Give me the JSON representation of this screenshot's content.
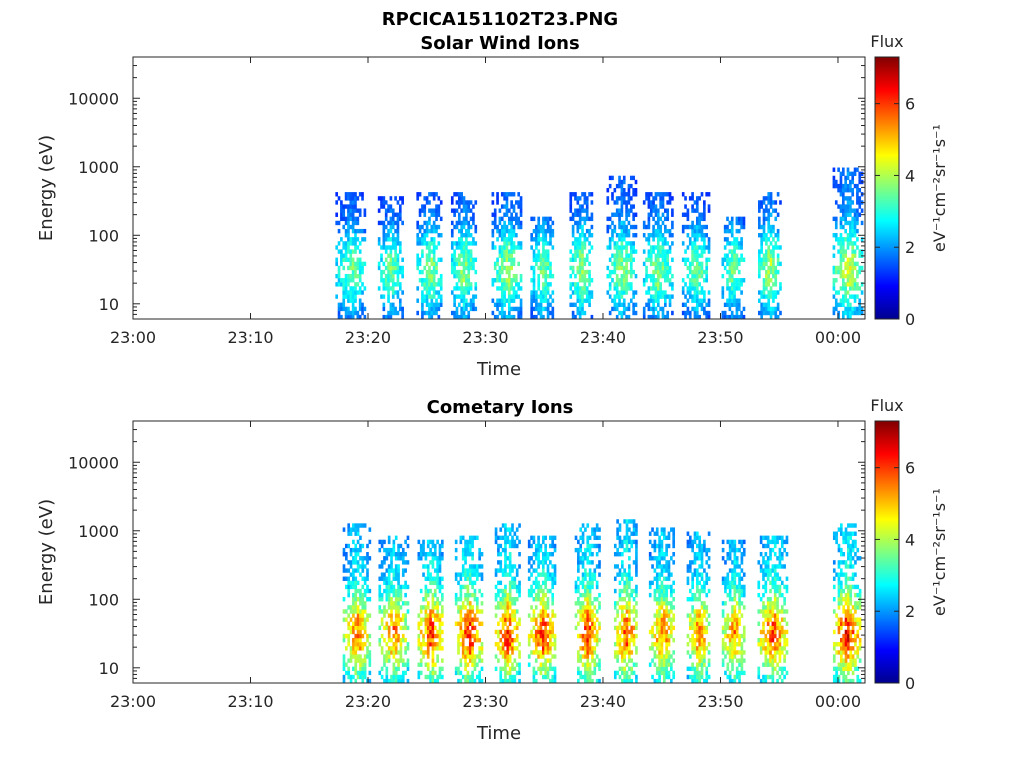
{
  "figure": {
    "title": "RPCICA151102T23.PNG"
  },
  "chart_data": [
    {
      "type": "heatmap",
      "title": "Solar Wind Ions",
      "xlabel": "Time",
      "ylabel": "Energy (eV)",
      "x_tick_labels": [
        "23:00",
        "23:10",
        "23:20",
        "23:30",
        "23:40",
        "23:50",
        "00:00"
      ],
      "x_ticks_min": [
        0,
        10,
        20,
        30,
        40,
        50,
        60
      ],
      "xlim_min": [
        0,
        62.3
      ],
      "y_scale": "log",
      "y_tick_labels": [
        "10",
        "100",
        "1000",
        "10000"
      ],
      "y_ticks": [
        10,
        100,
        1000,
        10000
      ],
      "ylim": [
        6,
        40000
      ],
      "colorbar": {
        "label": "Flux",
        "units": "eV⁻¹cm⁻²sr⁻¹s⁻¹",
        "range": [
          0,
          7.3
        ],
        "tick_labels": [
          "0",
          "2",
          "4",
          "6"
        ],
        "ticks": [
          0,
          2,
          4,
          6
        ]
      },
      "bursts": [
        {
          "t_min": 18.5,
          "e_max": 450,
          "peak": 3.6
        },
        {
          "t_min": 21.9,
          "e_max": 350,
          "peak": 3.6
        },
        {
          "t_min": 25.2,
          "e_max": 450,
          "peak": 3.8
        },
        {
          "t_min": 28.1,
          "e_max": 450,
          "peak": 3.8
        },
        {
          "t_min": 31.8,
          "e_max": 450,
          "peak": 3.9
        },
        {
          "t_min": 34.8,
          "e_max": 200,
          "peak": 3.7
        },
        {
          "t_min": 38.1,
          "e_max": 450,
          "peak": 3.9
        },
        {
          "t_min": 41.5,
          "e_max": 700,
          "peak": 3.8
        },
        {
          "t_min": 44.6,
          "e_max": 450,
          "peak": 3.8
        },
        {
          "t_min": 47.9,
          "e_max": 450,
          "peak": 3.6
        },
        {
          "t_min": 51.0,
          "e_max": 200,
          "peak": 3.6
        },
        {
          "t_min": 54.1,
          "e_max": 450,
          "peak": 4.1
        },
        {
          "t_min": 60.8,
          "e_max": 1000,
          "peak": 4.3
        }
      ]
    },
    {
      "type": "heatmap",
      "title": "Cometary Ions",
      "xlabel": "Time",
      "ylabel": "Energy (eV)",
      "x_tick_labels": [
        "23:00",
        "23:10",
        "23:20",
        "23:30",
        "23:40",
        "23:50",
        "00:00"
      ],
      "x_ticks_min": [
        0,
        10,
        20,
        30,
        40,
        50,
        60
      ],
      "xlim_min": [
        0,
        62.3
      ],
      "y_scale": "log",
      "y_tick_labels": [
        "10",
        "100",
        "1000",
        "10000"
      ],
      "y_ticks": [
        10,
        100,
        1000,
        10000
      ],
      "ylim": [
        6,
        40000
      ],
      "colorbar": {
        "label": "Flux",
        "units": "eV⁻¹cm⁻²sr⁻¹s⁻¹",
        "range": [
          0,
          7.3
        ],
        "tick_labels": [
          "0",
          "2",
          "4",
          "6"
        ],
        "ticks": [
          0,
          2,
          4,
          6
        ]
      },
      "bursts": [
        {
          "t_min": 19.0,
          "e_max": 1200,
          "peak": 5.6
        },
        {
          "t_min": 22.1,
          "e_max": 900,
          "peak": 5.5
        },
        {
          "t_min": 25.3,
          "e_max": 700,
          "peak": 6.0
        },
        {
          "t_min": 28.5,
          "e_max": 900,
          "peak": 6.2
        },
        {
          "t_min": 31.8,
          "e_max": 1200,
          "peak": 6.1
        },
        {
          "t_min": 34.8,
          "e_max": 900,
          "peak": 6.0
        },
        {
          "t_min": 38.6,
          "e_max": 1300,
          "peak": 6.0
        },
        {
          "t_min": 41.9,
          "e_max": 1400,
          "peak": 5.9
        },
        {
          "t_min": 45.0,
          "e_max": 1100,
          "peak": 5.6
        },
        {
          "t_min": 48.1,
          "e_max": 1000,
          "peak": 5.5
        },
        {
          "t_min": 51.1,
          "e_max": 700,
          "peak": 5.4
        },
        {
          "t_min": 54.4,
          "e_max": 900,
          "peak": 5.9
        },
        {
          "t_min": 60.7,
          "e_max": 1200,
          "peak": 6.3
        }
      ]
    }
  ]
}
